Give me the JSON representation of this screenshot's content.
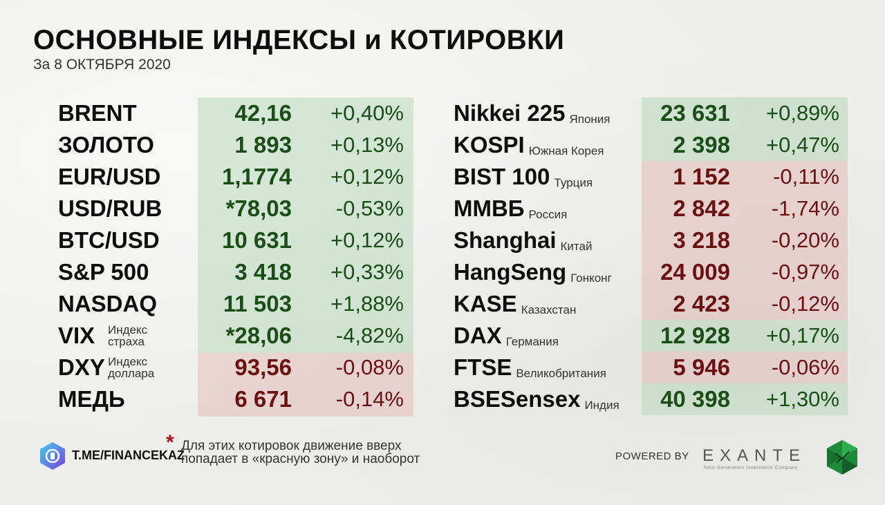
{
  "header": {
    "title": "ОСНОВНЫЕ ИНДЕКСЫ и КОТИРОВКИ",
    "subtitle": "За 8 ОКТЯБРЯ 2020"
  },
  "left_rows": [
    {
      "name": "BRENT",
      "value": "42,16",
      "change": "+0,40%",
      "trend": "up"
    },
    {
      "name": "ЗОЛОТО",
      "value": "1 893",
      "change": "+0,13%",
      "trend": "up"
    },
    {
      "name": "EUR/USD",
      "value": "1,1774",
      "change": "+0,12%",
      "trend": "up"
    },
    {
      "name": "USD/RUB",
      "value": "*78,03",
      "change": "-0,53%",
      "trend": "up"
    },
    {
      "name": "BTC/USD",
      "value": "10 631",
      "change": "+0,12%",
      "trend": "up"
    },
    {
      "name": "S&P 500",
      "value": "3 418",
      "change": "+0,33%",
      "trend": "up"
    },
    {
      "name": "NASDAQ",
      "value": "11 503",
      "change": "+1,88%",
      "trend": "up"
    },
    {
      "name": "VIX",
      "sub1": "Индекс",
      "sub2": "страха",
      "value": "*28,06",
      "change": "-4,82%",
      "trend": "up"
    },
    {
      "name": "DXY",
      "sub1": "Индекс",
      "sub2": "доллара",
      "value": "93,56",
      "change": "-0,08%",
      "trend": "down"
    },
    {
      "name": "МЕДЬ",
      "value": "6 671",
      "change": "-0,14%",
      "trend": "down"
    }
  ],
  "right_rows": [
    {
      "name": "Nikkei 225",
      "region": "Япония",
      "value": "23 631",
      "change": "+0,89%",
      "trend": "up"
    },
    {
      "name": "KOSPI",
      "region": "Южная Корея",
      "value": "2 398",
      "change": "+0,47%",
      "trend": "up"
    },
    {
      "name": "BIST 100",
      "region": "Турция",
      "value": "1 152",
      "change": "-0,11%",
      "trend": "down"
    },
    {
      "name": "ММВБ",
      "region": "Россия",
      "value": "2 842",
      "change": "-1,74%",
      "trend": "down"
    },
    {
      "name": "Shanghai",
      "region": "Китай",
      "value": "3 218",
      "change": "-0,20%",
      "trend": "down"
    },
    {
      "name": "HangSeng",
      "region": "Гонконг",
      "value": "24 009",
      "change": "-0,97%",
      "trend": "down"
    },
    {
      "name": "KASE",
      "region": "Казахстан",
      "value": "2 423",
      "change": "-0,12%",
      "trend": "down"
    },
    {
      "name": "DAX",
      "region": "Германия",
      "value": "12 928",
      "change": "+0,17%",
      "trend": "up"
    },
    {
      "name": "FTSE",
      "region": "Великобритания",
      "value": "5 946",
      "change": "-0,06%",
      "trend": "down"
    },
    {
      "name": "BSESensex",
      "region": "Индия",
      "value": "40 398",
      "change": "+1,30%",
      "trend": "up"
    }
  ],
  "footer": {
    "channel_link": "T.ME/FINANCEKAZ",
    "note_mark": "*",
    "note_text": "Для этих котировок движение вверх попадает в «красную зону» и наоборот",
    "powered_by": "POWERED BY",
    "brand": "EXANTE",
    "brand_tagline": "Next Generation Investment Company"
  },
  "colors": {
    "up_text": "#1b4d17",
    "down_text": "#6a1010",
    "up_zone": "#cde6cf",
    "down_zone": "#f0d6d3",
    "note_mark": "#b0141a"
  },
  "icons": [
    "finance-channel-logo-icon",
    "exante-logo-icon"
  ]
}
